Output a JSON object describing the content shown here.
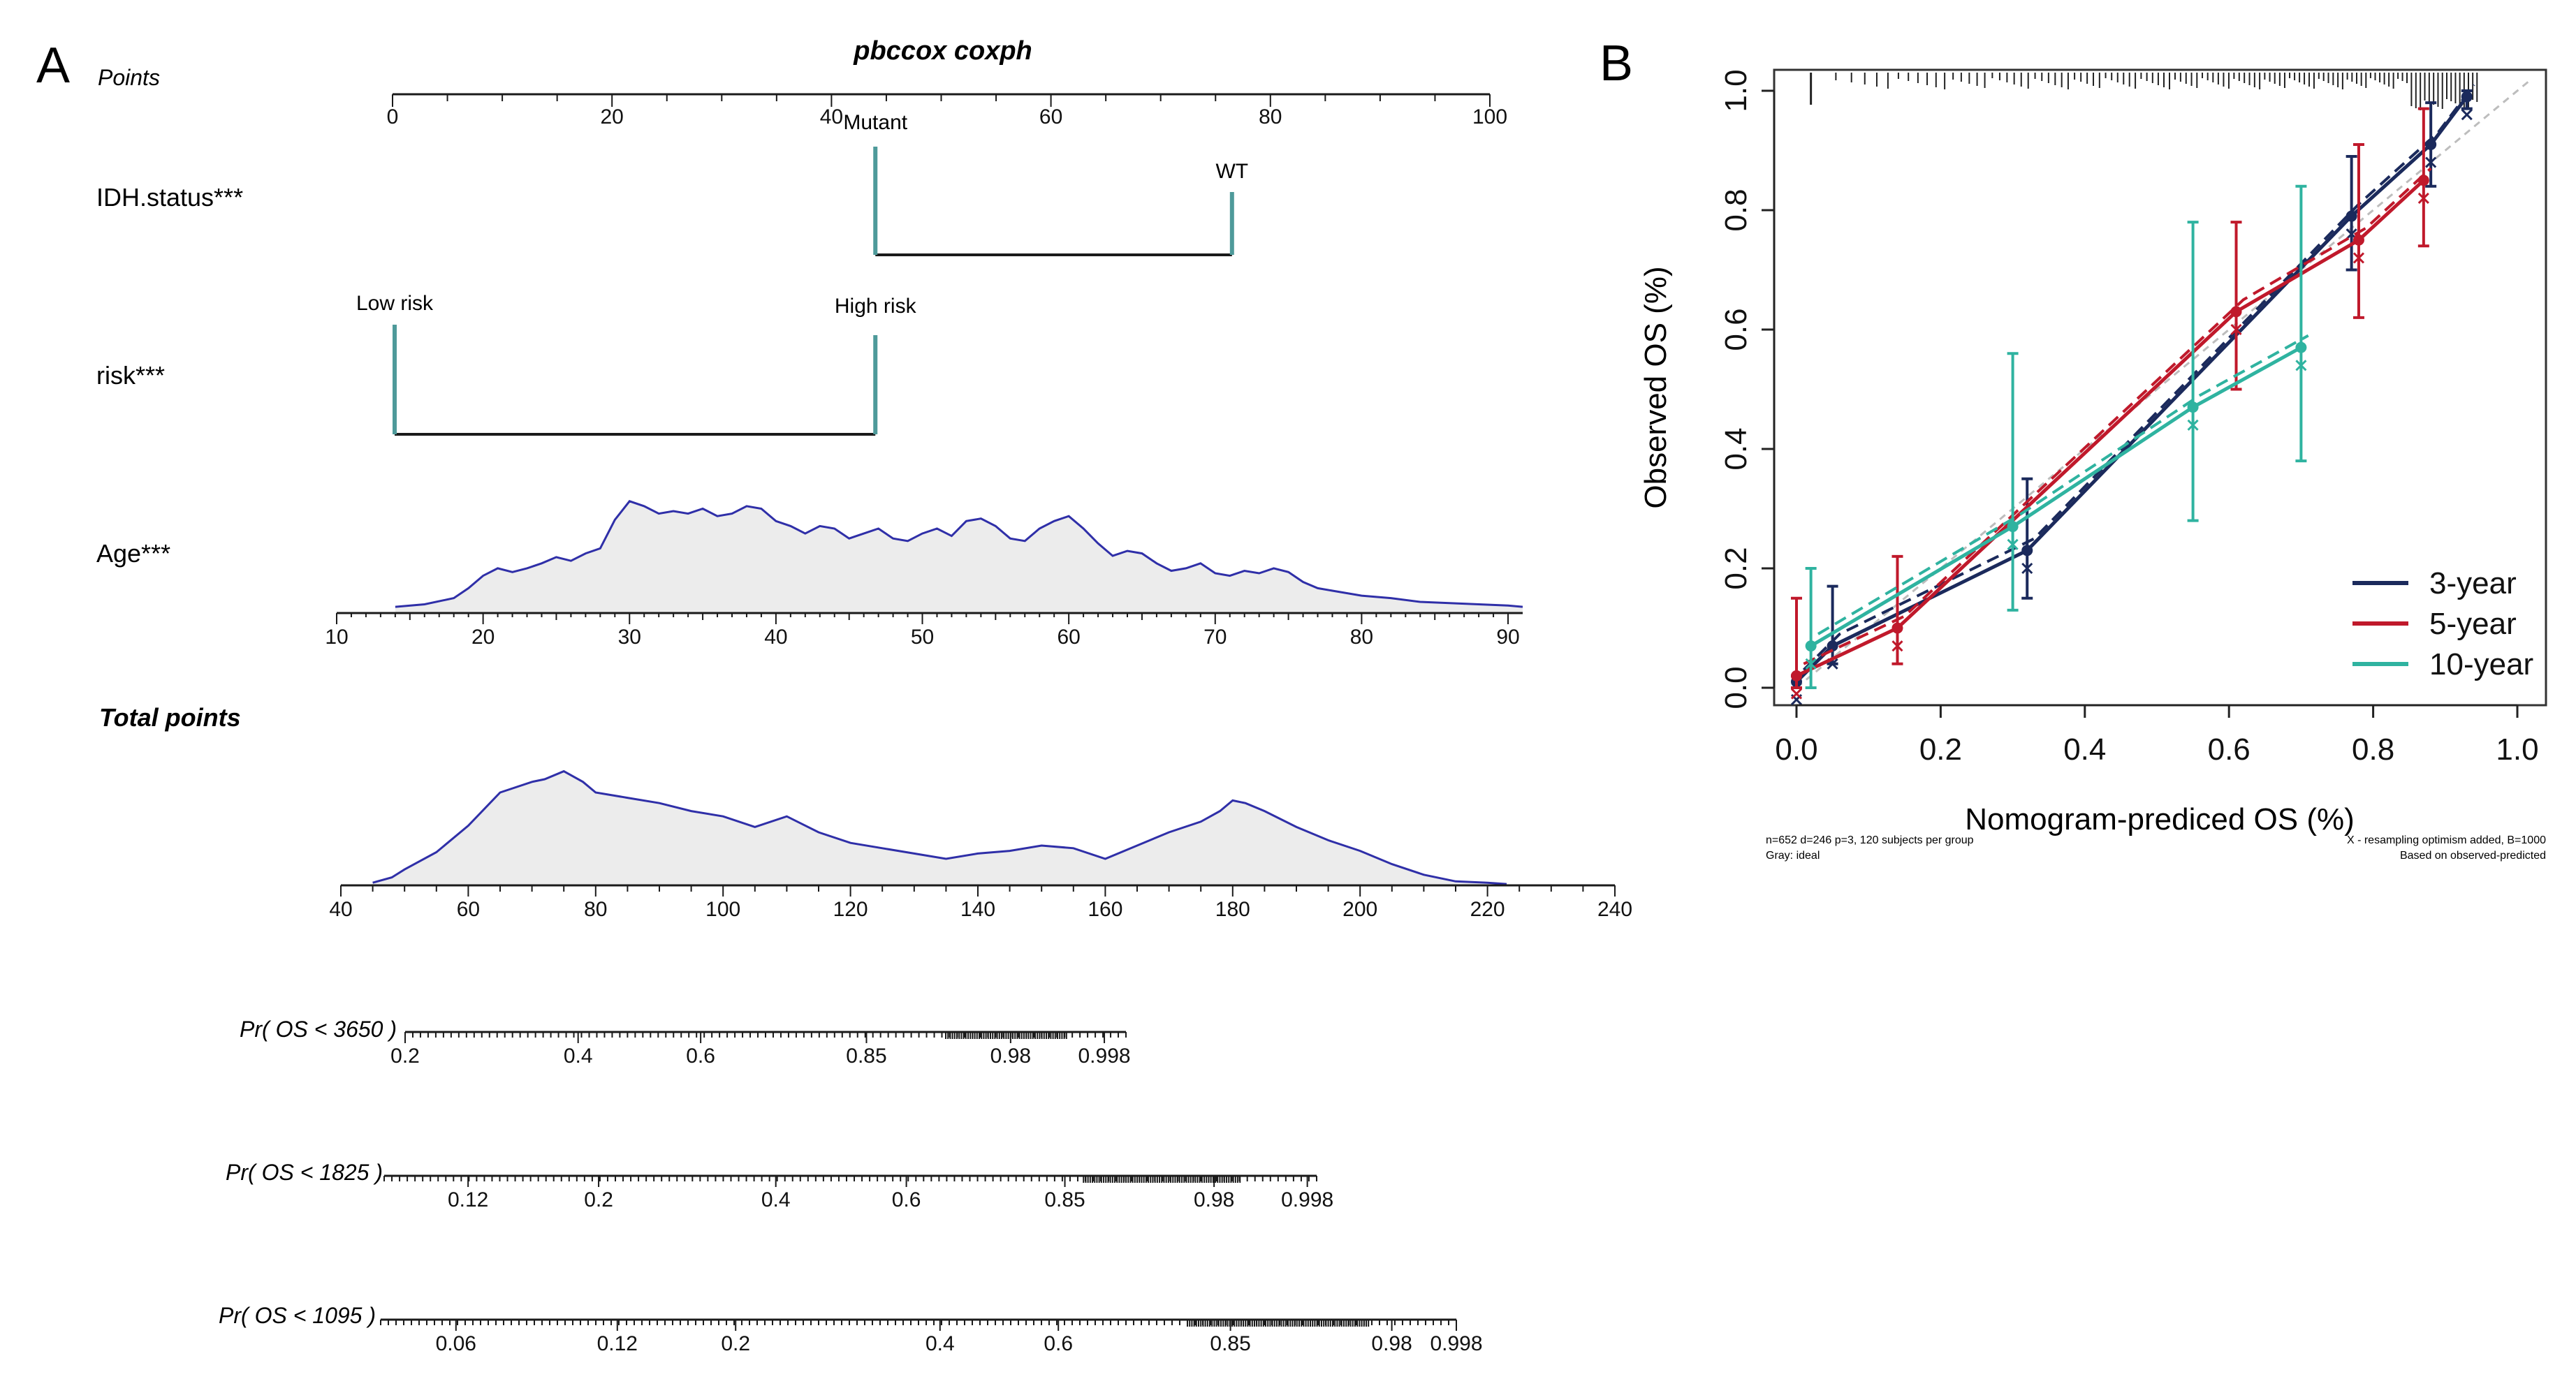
{
  "colors": {
    "nom_line": "#1a1a1a",
    "nom_marker": "#4e9a9a",
    "density_line": "#2f2fa8",
    "density_fill": "#ececec",
    "cal_3y": "#1b2a5c",
    "cal_5y": "#c0192b",
    "cal_10y": "#2fb3a0",
    "ideal": "#bdbdbd"
  },
  "panelA": {
    "label": "A",
    "title": "pbccox coxph",
    "points": {
      "label": "Points",
      "ticks": [
        "0",
        "20",
        "40",
        "60",
        "80",
        "100"
      ]
    },
    "idh": {
      "label": "IDH.status***",
      "level_mutant": "Mutant",
      "level_wt": "WT",
      "points_mutant": 44,
      "points_wt": 76.5
    },
    "risk": {
      "label": "risk***",
      "level_low": "Low risk",
      "level_high": "High risk",
      "points_low": 0,
      "points_high": 44
    },
    "age": {
      "label": "Age***",
      "ticks": [
        "10",
        "20",
        "30",
        "40",
        "50",
        "60",
        "70",
        "80",
        "90"
      ]
    },
    "total": {
      "label": "Total points",
      "ticks": [
        "40",
        "60",
        "80",
        "100",
        "120",
        "140",
        "160",
        "180",
        "200",
        "220",
        "240"
      ]
    },
    "pr3650": {
      "label": "Pr( OS < 3650 )",
      "ticks": [
        "0.2",
        "0.4",
        "0.6",
        "0.85",
        "0.98",
        "0.998"
      ]
    },
    "pr1825": {
      "label": "Pr( OS < 1825 )",
      "ticks": [
        "0.12",
        "0.2",
        "0.4",
        "0.6",
        "0.85",
        "0.98",
        "0.998"
      ]
    },
    "pr1095": {
      "label": "Pr( OS < 1095 )",
      "ticks": [
        "0.06",
        "0.12",
        "0.2",
        "0.4",
        "0.6",
        "0.85",
        "0.98",
        "0.998"
      ]
    }
  },
  "chart_data": [
    {
      "type": "area",
      "name": "Age density",
      "x": [
        14,
        16,
        18,
        19,
        20,
        21,
        22,
        23,
        24,
        25,
        26,
        27,
        28,
        29,
        30,
        31,
        32,
        33,
        34,
        35,
        36,
        37,
        38,
        39,
        40,
        41,
        42,
        43,
        44,
        45,
        46,
        47,
        48,
        49,
        50,
        51,
        52,
        53,
        54,
        55,
        56,
        57,
        58,
        59,
        60,
        61,
        62,
        63,
        64,
        65,
        66,
        67,
        68,
        69,
        70,
        71,
        72,
        73,
        74,
        75,
        76,
        77,
        78,
        80,
        82,
        84,
        86,
        88,
        90,
        91
      ],
      "values": [
        0.05,
        0.07,
        0.12,
        0.2,
        0.3,
        0.36,
        0.33,
        0.36,
        0.4,
        0.45,
        0.42,
        0.48,
        0.52,
        0.75,
        0.9,
        0.86,
        0.8,
        0.82,
        0.8,
        0.84,
        0.78,
        0.8,
        0.86,
        0.84,
        0.74,
        0.7,
        0.64,
        0.7,
        0.68,
        0.6,
        0.64,
        0.68,
        0.6,
        0.58,
        0.64,
        0.68,
        0.62,
        0.74,
        0.76,
        0.7,
        0.6,
        0.58,
        0.68,
        0.74,
        0.78,
        0.68,
        0.56,
        0.46,
        0.5,
        0.48,
        0.4,
        0.34,
        0.36,
        0.4,
        0.32,
        0.3,
        0.34,
        0.32,
        0.36,
        0.33,
        0.25,
        0.2,
        0.18,
        0.14,
        0.12,
        0.09,
        0.08,
        0.07,
        0.06,
        0.05
      ],
      "xlim": [
        10,
        91
      ]
    },
    {
      "type": "area",
      "name": "Total points density",
      "x": [
        45,
        48,
        50,
        55,
        60,
        65,
        70,
        72,
        75,
        78,
        80,
        85,
        90,
        95,
        100,
        105,
        110,
        115,
        120,
        125,
        130,
        135,
        140,
        145,
        150,
        155,
        160,
        165,
        170,
        175,
        178,
        180,
        182,
        185,
        190,
        195,
        200,
        205,
        210,
        215,
        220,
        223
      ],
      "values": [
        0.02,
        0.06,
        0.12,
        0.25,
        0.45,
        0.7,
        0.78,
        0.8,
        0.86,
        0.78,
        0.7,
        0.66,
        0.62,
        0.56,
        0.52,
        0.44,
        0.52,
        0.4,
        0.32,
        0.28,
        0.24,
        0.2,
        0.24,
        0.26,
        0.3,
        0.28,
        0.2,
        0.3,
        0.4,
        0.48,
        0.56,
        0.64,
        0.62,
        0.56,
        0.44,
        0.34,
        0.26,
        0.16,
        0.08,
        0.03,
        0.02,
        0.01
      ],
      "xlim": [
        40,
        240
      ]
    },
    {
      "type": "line",
      "title": "",
      "panel_label": "B",
      "xlabel": "Nomogram-prediced OS (%)",
      "ylabel": "Observed OS (%)",
      "xlim": [
        0,
        1
      ],
      "ylim": [
        0,
        1
      ],
      "xticks": [
        "0.0",
        "0.2",
        "0.4",
        "0.6",
        "0.8",
        "1.0"
      ],
      "yticks": [
        "0.0",
        "0.2",
        "0.4",
        "0.6",
        "0.8",
        "1.0"
      ],
      "legend_position": "bottom-right",
      "series": [
        {
          "name": "3-year",
          "x": [
            0.0,
            0.05,
            0.32,
            0.77,
            0.88,
            0.93
          ],
          "y": [
            0.01,
            0.07,
            0.23,
            0.79,
            0.91,
            0.99
          ],
          "lower": [
            0.0,
            0.04,
            0.15,
            0.7,
            0.84,
            0.97
          ],
          "upper": [
            0.02,
            0.17,
            0.35,
            0.89,
            0.98,
            1.0
          ]
        },
        {
          "name": "5-year",
          "x": [
            0.0,
            0.14,
            0.61,
            0.78,
            0.87
          ],
          "y": [
            0.02,
            0.1,
            0.63,
            0.75,
            0.85
          ],
          "lower": [
            0.0,
            0.04,
            0.5,
            0.62,
            0.74
          ],
          "upper": [
            0.15,
            0.22,
            0.78,
            0.91,
            0.97
          ]
        },
        {
          "name": "10-year",
          "x": [
            0.02,
            0.3,
            0.55,
            0.7
          ],
          "y": [
            0.07,
            0.27,
            0.47,
            0.57
          ],
          "lower": [
            0.0,
            0.13,
            0.28,
            0.38
          ],
          "upper": [
            0.2,
            0.56,
            0.78,
            0.84
          ]
        }
      ],
      "footnote_left": "n=652 d=246 p=3, 120 subjects per group",
      "footnote_left2": "Gray: ideal",
      "footnote_right": "X - resampling optimism added, B=1000",
      "footnote_right2": "Based on observed-predicted"
    }
  ]
}
